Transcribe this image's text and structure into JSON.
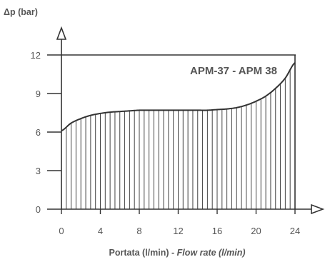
{
  "chart_data": {
    "type": "area",
    "title": "",
    "xlabel_main": "Portata (l/min) - ",
    "xlabel_italic": "Flow rate (l/min)",
    "ylabel": "Δp (bar)",
    "series_label": "APM-37 - APM 38",
    "xlim": [
      0,
      24
    ],
    "ylim": [
      0,
      12
    ],
    "x_ticks": [
      "0",
      "4",
      "8",
      "12",
      "16",
      "20",
      "24"
    ],
    "y_ticks": [
      "0",
      "3",
      "6",
      "9",
      "12"
    ],
    "x_tick_values": [
      0,
      4,
      8,
      12,
      16,
      20,
      24
    ],
    "y_tick_values": [
      0,
      3,
      6,
      9,
      12
    ],
    "upper_limit": 12,
    "hatch": "vertical",
    "series": [
      {
        "x": [
          0,
          1,
          2,
          3,
          4,
          5,
          6,
          7,
          8,
          9,
          10,
          11,
          12,
          13,
          14,
          15,
          16,
          17,
          18,
          19,
          20,
          21,
          22,
          23,
          24
        ],
        "y": [
          6.1,
          6.7,
          7.05,
          7.3,
          7.45,
          7.55,
          7.6,
          7.65,
          7.7,
          7.7,
          7.7,
          7.7,
          7.7,
          7.7,
          7.7,
          7.7,
          7.75,
          7.8,
          7.9,
          8.1,
          8.4,
          8.8,
          9.4,
          10.2,
          11.4
        ]
      }
    ],
    "grid": false,
    "colors": {
      "axis": "#333333",
      "curve": "#333333",
      "text": "#555555",
      "hatch": "#444444"
    }
  }
}
